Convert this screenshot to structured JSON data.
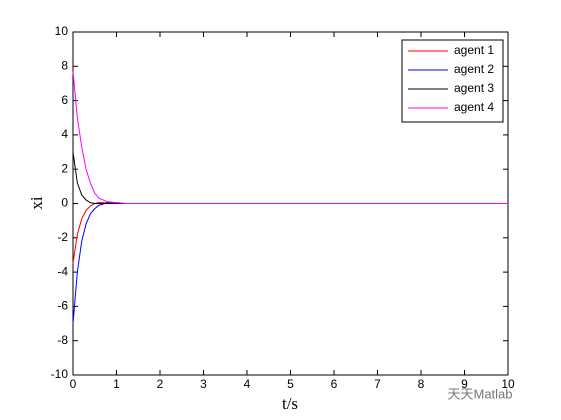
{
  "chart_data": {
    "type": "line",
    "xlabel": "t/s",
    "ylabel": "xi",
    "x": [
      0,
      0.1,
      0.2,
      0.3,
      0.4,
      0.5,
      0.6,
      0.8,
      1,
      1.2,
      10
    ],
    "series": [
      {
        "name": "agent 1",
        "color": "#ff0000",
        "values": [
          -3.5,
          -1.8,
          -0.9,
          -0.4,
          -0.15,
          0,
          0.05,
          0.05,
          0.02,
          0,
          0
        ]
      },
      {
        "name": "agent 2",
        "color": "#0000ff",
        "values": [
          -7,
          -4,
          -2.2,
          -1.2,
          -0.6,
          -0.3,
          -0.1,
          0.05,
          0.05,
          0,
          0
        ]
      },
      {
        "name": "agent 3",
        "color": "#000000",
        "values": [
          3,
          1.2,
          0.5,
          0.2,
          0.05,
          0,
          0,
          0,
          0,
          0,
          0
        ]
      },
      {
        "name": "agent 4",
        "color": "#ff00ff",
        "values": [
          7.7,
          5,
          3.3,
          2,
          1.2,
          0.6,
          0.3,
          0.1,
          0.05,
          0,
          0
        ]
      }
    ],
    "xlim": [
      0,
      10
    ],
    "xticks": [
      0,
      1,
      2,
      3,
      4,
      5,
      6,
      7,
      8,
      9,
      10
    ],
    "ylim": [
      -10,
      10
    ],
    "yticks": [
      -10,
      -8,
      -6,
      -4,
      -2,
      0,
      2,
      4,
      6,
      8,
      10
    ],
    "legend": "top-right",
    "watermark": "天天Matlab"
  }
}
